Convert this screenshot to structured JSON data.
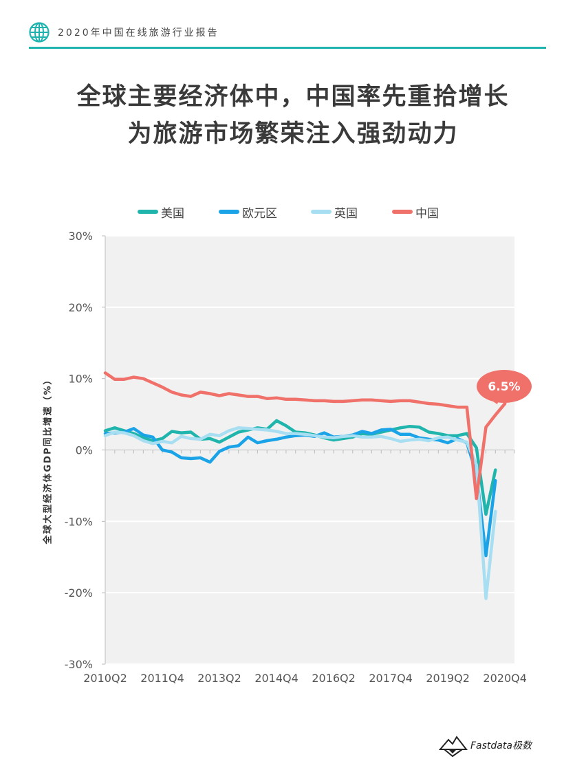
{
  "header": {
    "title": "2020年中国在线旅游行业报告",
    "accent": "#1fb3b0"
  },
  "main_title": {
    "line1": "全球主要经济体中，中国率先重拾增长",
    "line2": "为旅游市场繁荣注入强劲动力"
  },
  "footer": {
    "brand": "Fastdata极数"
  },
  "chart_data": {
    "type": "line",
    "ylabel": "全球大型经济体GDP同比增速（%）",
    "ylim": [
      -30,
      30
    ],
    "y_ticks": [
      "-30%",
      "-20%",
      "-10%",
      "0%",
      "10%",
      "20%",
      "30%"
    ],
    "x_tick_labels": [
      "2010Q2",
      "2011Q4",
      "2013Q2",
      "2014Q4",
      "2016Q2",
      "2017Q4",
      "2019Q2",
      "2020Q4"
    ],
    "x_tick_positions": [
      0,
      6,
      12,
      18,
      24,
      30,
      36,
      42
    ],
    "x_max": 43,
    "grid": true,
    "legend_position": "top",
    "annotation": {
      "series": "中国",
      "label": "6.5%",
      "color": "#f0706a"
    },
    "series": [
      {
        "name": "美国",
        "color": "#1fb5ad",
        "values": [
          2.7,
          3.1,
          2.7,
          2.3,
          1.7,
          1.3,
          1.6,
          2.6,
          2.4,
          2.5,
          1.5,
          1.6,
          1.1,
          1.8,
          2.5,
          2.8,
          3.1,
          2.9,
          4.1,
          3.4,
          2.5,
          2.4,
          2.1,
          1.7,
          1.4,
          1.6,
          1.8,
          2.3,
          2.2,
          2.5,
          2.8,
          3.1,
          3.3,
          3.2,
          2.5,
          2.3,
          2.0,
          2.0,
          2.3,
          0.3,
          -9.0,
          -2.8
        ]
      },
      {
        "name": "欧元区",
        "color": "#1aa3e6",
        "values": [
          2.3,
          2.4,
          2.5,
          3.0,
          2.1,
          1.8,
          0.0,
          -0.3,
          -1.1,
          -1.2,
          -1.1,
          -1.7,
          -0.2,
          0.4,
          0.6,
          1.8,
          1.0,
          1.3,
          1.5,
          1.8,
          2.0,
          2.1,
          1.9,
          2.4,
          1.8,
          1.9,
          2.1,
          2.6,
          2.3,
          2.8,
          2.9,
          2.2,
          2.2,
          1.7,
          1.5,
          1.4,
          1.0,
          1.6,
          1.0,
          -3.3,
          -14.8,
          -4.3
        ]
      },
      {
        "name": "英国",
        "color": "#a8def2",
        "values": [
          2.0,
          2.5,
          2.4,
          2.0,
          1.3,
          0.9,
          1.2,
          1.0,
          1.9,
          1.6,
          1.5,
          2.2,
          2.0,
          2.7,
          3.1,
          3.0,
          2.9,
          2.8,
          2.6,
          2.3,
          2.3,
          2.2,
          2.0,
          1.8,
          1.7,
          1.9,
          2.0,
          1.8,
          1.8,
          1.9,
          1.6,
          1.2,
          1.4,
          1.5,
          1.3,
          1.7,
          1.8,
          1.4,
          1.1,
          -2.1,
          -20.8,
          -8.6
        ]
      },
      {
        "name": "中国",
        "color": "#f0706a",
        "values": [
          10.8,
          9.9,
          9.9,
          10.2,
          10.0,
          9.4,
          8.8,
          8.1,
          7.7,
          7.5,
          8.1,
          7.9,
          7.6,
          7.9,
          7.7,
          7.5,
          7.5,
          7.2,
          7.3,
          7.1,
          7.1,
          7.0,
          6.9,
          6.9,
          6.8,
          6.8,
          6.9,
          7.0,
          7.0,
          6.9,
          6.8,
          6.9,
          6.9,
          6.7,
          6.5,
          6.4,
          6.2,
          6.0,
          6.0,
          -6.8,
          3.2,
          4.9,
          6.5
        ]
      }
    ]
  }
}
